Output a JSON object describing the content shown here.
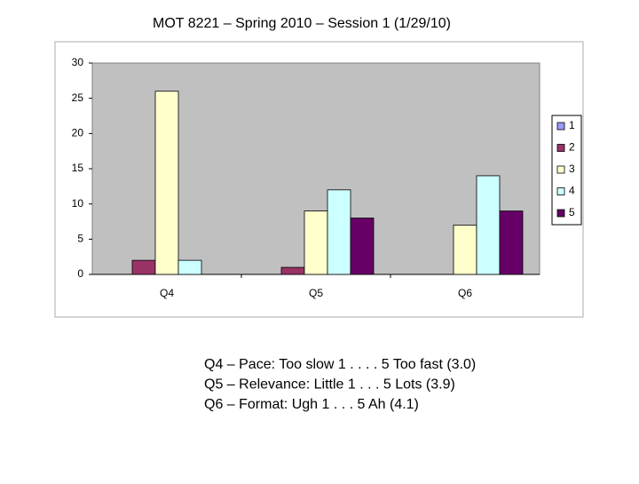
{
  "chart_data": {
    "type": "bar",
    "title": "MOT 8221 – Spring 2010 – Session 1 (1/29/10)",
    "categories": [
      "Q4",
      "Q5",
      "Q6"
    ],
    "series": [
      {
        "name": "1",
        "color": "#9999ff",
        "values": [
          0,
          0,
          0
        ]
      },
      {
        "name": "2",
        "color": "#993366",
        "values": [
          2,
          1,
          0
        ]
      },
      {
        "name": "3",
        "color": "#ffffcc",
        "values": [
          26,
          9,
          7
        ]
      },
      {
        "name": "4",
        "color": "#ccffff",
        "values": [
          2,
          12,
          14
        ]
      },
      {
        "name": "5",
        "color": "#660066",
        "values": [
          0,
          8,
          9
        ]
      }
    ],
    "ylim": [
      0,
      30
    ],
    "yticks": [
      0,
      5,
      10,
      15,
      20,
      25,
      30
    ],
    "grid": false,
    "legend": "right",
    "annotations": [
      "Q4 – Pace: Too slow 1 . . . . 5 Too fast (3.0)",
      "Q5 – Relevance: Little 1 . . . 5 Lots (3.9)",
      "Q6 – Format: Ugh 1 . . . 5 Ah (4.1)"
    ]
  }
}
